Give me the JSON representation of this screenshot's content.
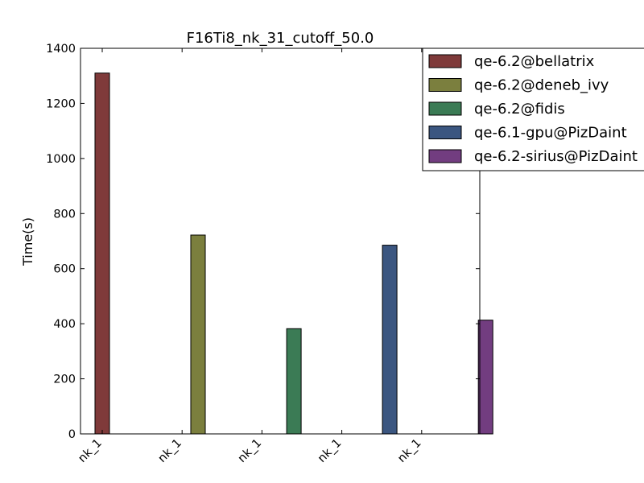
{
  "chart_data": {
    "type": "bar",
    "title": "F16Ti8_nk_31_cutoff_50.0",
    "xlabel": "",
    "ylabel": "Time(s)",
    "ylim": [
      0,
      1400
    ],
    "yticks": [
      0,
      200,
      400,
      600,
      800,
      1000,
      1200,
      1400
    ],
    "grid": false,
    "legend_position": "top-right",
    "categories": [
      "nk_1",
      "nk_1",
      "nk_1",
      "nk_1",
      "nk_1"
    ],
    "series": [
      {
        "name": "qe-6.2@bellatrix",
        "color": "#7f3a3a",
        "values": [
          1310,
          null,
          null,
          null,
          null
        ]
      },
      {
        "name": "qe-6.2@deneb_ivy",
        "color": "#7b7f3e",
        "values": [
          null,
          722,
          null,
          null,
          null
        ]
      },
      {
        "name": "qe-6.2@fidis",
        "color": "#3b7b55",
        "values": [
          null,
          null,
          382,
          null,
          null
        ]
      },
      {
        "name": "qe-6.1-gpu@PizDaint",
        "color": "#3b5680",
        "values": [
          null,
          null,
          null,
          685,
          null
        ]
      },
      {
        "name": "qe-6.2-sirius@PizDaint",
        "color": "#723d80",
        "values": [
          null,
          null,
          null,
          null,
          413
        ]
      }
    ]
  }
}
